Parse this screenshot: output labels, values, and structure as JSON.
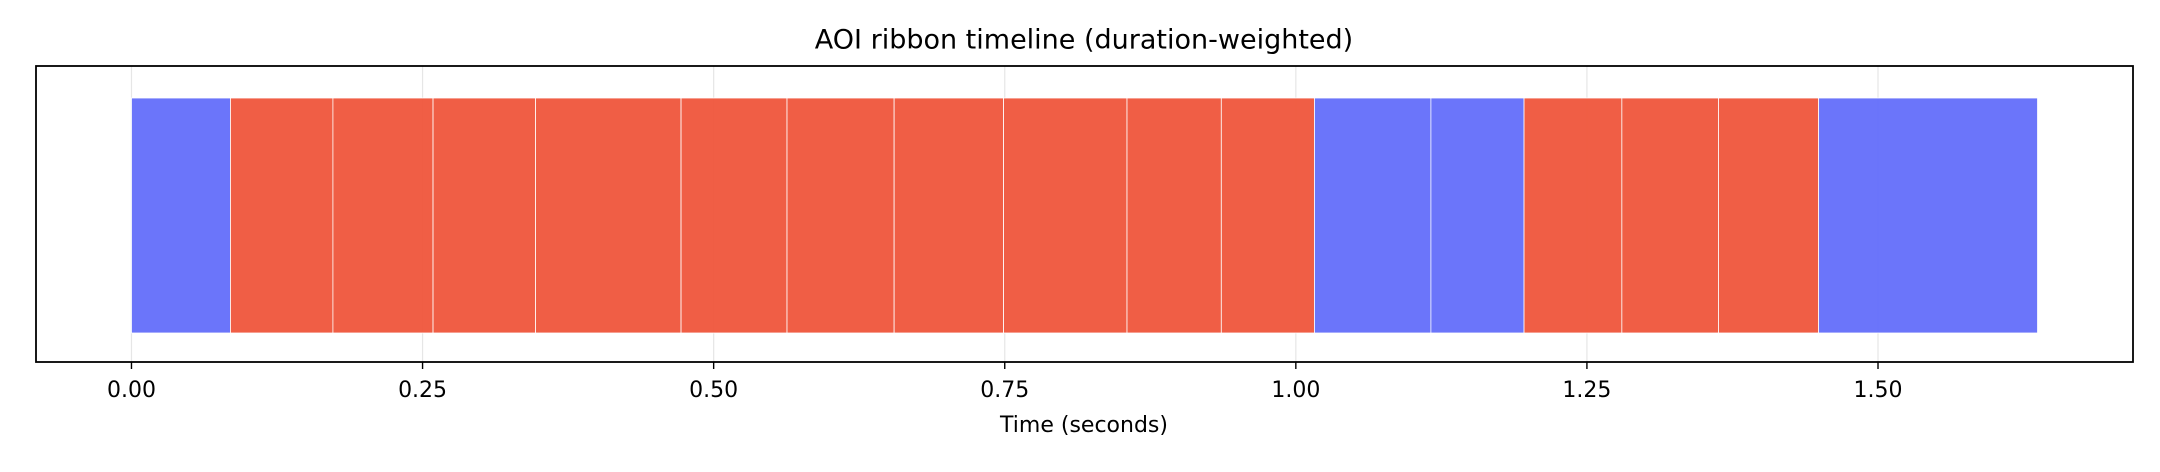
{
  "chart_data": {
    "type": "ribbon",
    "title": "AOI ribbon timeline (duration-weighted)",
    "x_label": "Time (seconds)",
    "starts": [
      0,
      0.085,
      0.173,
      0.259,
      0.347,
      0.472,
      0.563,
      0.655,
      0.749,
      0.855,
      0.936,
      1.016,
      1.116,
      1.196,
      1.28,
      1.363,
      1.449
    ],
    "durations": [
      0.085,
      0.088,
      0.086,
      0.088,
      0.125,
      0.091,
      0.092,
      0.094,
      0.106,
      0.081,
      0.08,
      0.1,
      0.08,
      0.084,
      0.083,
      0.086,
      0.188
    ],
    "colors": [
      "#636efa",
      "#ef553b",
      "#ef553b",
      "#ef553b",
      "#ef553b",
      "#ef553b",
      "#ef553b",
      "#ef553b",
      "#ef553b",
      "#ef553b",
      "#ef553b",
      "#636efa",
      "#636efa",
      "#ef553b",
      "#ef553b",
      "#ef553b",
      "#636efa"
    ],
    "xlim": [
      -0.082,
      1.719
    ],
    "xticks": [
      {
        "value": 0,
        "label": "0.00"
      },
      {
        "value": 0.25,
        "label": "0.25"
      },
      {
        "value": 0.5,
        "label": "0.50"
      },
      {
        "value": 0.75,
        "label": "0.75"
      },
      {
        "value": 1,
        "label": "1.00"
      },
      {
        "value": 1.25,
        "label": "1.25"
      },
      {
        "value": 1.5,
        "label": "1.50"
      }
    ],
    "grid": true
  }
}
